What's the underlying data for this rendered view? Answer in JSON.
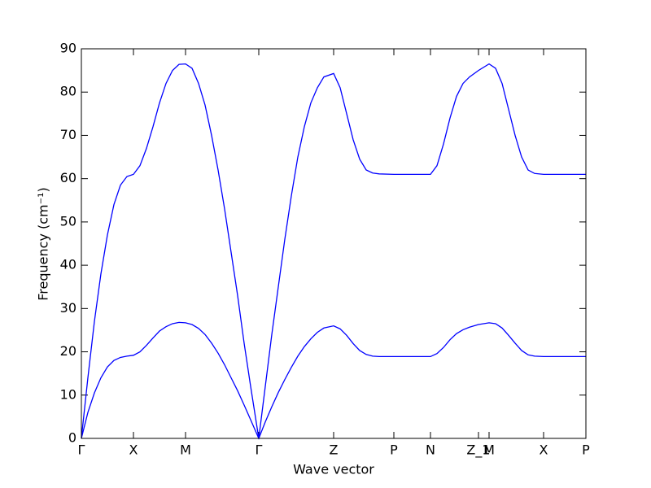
{
  "chart_data": {
    "type": "line",
    "xlabel": "Wave vector",
    "ylabel": "Frequency (cm⁻¹)",
    "xlim": [
      0,
      6.2
    ],
    "ylim": [
      0,
      90
    ],
    "xticks": [
      {
        "value": 0,
        "label": "Γ"
      },
      {
        "value": 0.64,
        "label": "X"
      },
      {
        "value": 1.28,
        "label": "M"
      },
      {
        "value": 2.18,
        "label": "Γ"
      },
      {
        "value": 3.1,
        "label": "Z"
      },
      {
        "value": 3.84,
        "label": "P"
      },
      {
        "value": 4.29,
        "label": "N"
      },
      {
        "value": 4.88,
        "label": "Z_1"
      },
      {
        "value": 5.01,
        "label": "M"
      },
      {
        "value": 5.68,
        "label": "X"
      },
      {
        "value": 6.2,
        "label": "P"
      }
    ],
    "yticks": [
      0,
      10,
      20,
      30,
      40,
      50,
      60,
      70,
      80,
      90
    ],
    "x": [
      0,
      0.08,
      0.16,
      0.24,
      0.32,
      0.4,
      0.48,
      0.56,
      0.64,
      0.72,
      0.8,
      0.88,
      0.96,
      1.04,
      1.12,
      1.2,
      1.28,
      1.36,
      1.44,
      1.52,
      1.6,
      1.68,
      1.76,
      1.84,
      1.92,
      2.0,
      2.08,
      2.18,
      2.26,
      2.34,
      2.42,
      2.5,
      2.58,
      2.66,
      2.74,
      2.82,
      2.9,
      2.98,
      3.1,
      3.18,
      3.26,
      3.34,
      3.42,
      3.5,
      3.58,
      3.66,
      3.84,
      4.06,
      4.29,
      4.37,
      4.45,
      4.53,
      4.61,
      4.69,
      4.77,
      4.88,
      5.01,
      5.09,
      5.17,
      5.25,
      5.33,
      5.41,
      5.49,
      5.57,
      5.68,
      6.2
    ],
    "series": [
      {
        "color": "#0000ff",
        "values": [
          0,
          14,
          27,
          38,
          47,
          54,
          58.5,
          60.5,
          61,
          63,
          67,
          72,
          77.5,
          82,
          85,
          86.4,
          86.5,
          85.5,
          82,
          77,
          70,
          62,
          53,
          43,
          33,
          22,
          12,
          0,
          12,
          24,
          35,
          46,
          56,
          65,
          72,
          77.5,
          81,
          83.5,
          84.3,
          81,
          75,
          69,
          64.5,
          62,
          61.3,
          61.1,
          61,
          61,
          61,
          63,
          68,
          74,
          79,
          82,
          83.5,
          85,
          86.5,
          85.5,
          82,
          76,
          70,
          65,
          62,
          61.2,
          61,
          61
        ]
      },
      {
        "color": "#0000ff",
        "values": [
          0,
          6,
          10.5,
          14,
          16.5,
          18,
          18.7,
          19,
          19.2,
          20,
          21.5,
          23.2,
          24.8,
          25.8,
          26.5,
          26.8,
          26.7,
          26.3,
          25.4,
          24,
          22,
          19.7,
          17,
          14,
          11,
          7.7,
          4.3,
          0,
          3.8,
          7.3,
          10.6,
          13.6,
          16.4,
          19,
          21.2,
          23,
          24.5,
          25.5,
          26,
          25.3,
          23.8,
          21.9,
          20.3,
          19.4,
          19,
          18.9,
          18.9,
          18.9,
          18.9,
          19.6,
          21,
          22.8,
          24.2,
          25.1,
          25.7,
          26.3,
          26.7,
          26.5,
          25.5,
          23.8,
          22,
          20.3,
          19.3,
          19,
          18.9,
          18.9
        ]
      }
    ]
  }
}
